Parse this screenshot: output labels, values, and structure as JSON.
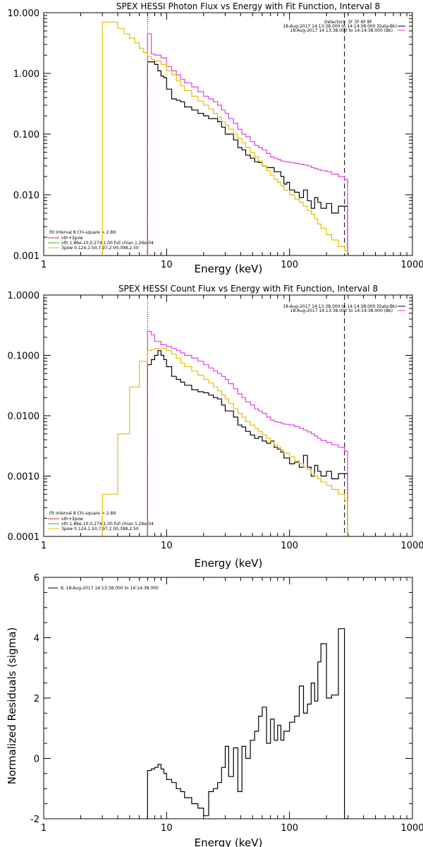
{
  "chart_data": [
    {
      "type": "line",
      "title": "SPEX HESSI Photon Flux vs Energy with Fit Function, Interval 8",
      "xlabel": "Energy (keV)",
      "ylabel": "",
      "xscale": "log",
      "yscale": "log",
      "xlim": [
        1,
        1000
      ],
      "ylim": [
        0.001,
        10
      ],
      "xticks": [
        "1",
        "10",
        "100",
        "1000"
      ],
      "yticks": [
        "0.001",
        "0.010",
        "0.100",
        "1.000",
        "10.000"
      ],
      "vlines": {
        "dotted": 7,
        "dashed": 280
      },
      "legend_top_right": [
        "Detectors: 1F 3F 6F 8F",
        "18-Aug-2017 14:13:38.000 to 14:14:38.000 (Data-Bk)",
        "18-Aug-2017 14:13:38.000 to 14:14:38.000 (Bk)"
      ],
      "legend_bottom_left": [
        "Fit Interval  8   Chi-square = 2.89",
        "vth+3pow",
        "vth 1.86e-10,0.274,1.00  full chian 1.26e-04",
        "3pow 0.124,1.50,7.97,2.00,398,2.50"
      ],
      "series": [
        {
          "name": "(Data-Bk)",
          "color": "#000000",
          "x": [
            7.0,
            7.5,
            8.0,
            8.5,
            9.0,
            9.5,
            10,
            11,
            12,
            13,
            14,
            16,
            18,
            20,
            22,
            24,
            26,
            28,
            30,
            32,
            35,
            38,
            41,
            44,
            48,
            52,
            56,
            60,
            65,
            70,
            75,
            80,
            85,
            90,
            95,
            100,
            110,
            120,
            130,
            140,
            150,
            160,
            170,
            180,
            200,
            220,
            250,
            280
          ],
          "y": [
            1.55,
            1.55,
            1.4,
            1.1,
            0.9,
            0.85,
            0.55,
            0.38,
            0.36,
            0.34,
            0.28,
            0.25,
            0.22,
            0.2,
            0.18,
            0.18,
            0.16,
            0.13,
            0.1,
            0.1,
            0.08,
            0.06,
            0.055,
            0.045,
            0.04,
            0.035,
            0.034,
            0.03,
            0.028,
            0.028,
            0.024,
            0.024,
            0.02,
            0.015,
            0.016,
            0.012,
            0.011,
            0.009,
            0.012,
            0.008,
            0.006,
            0.009,
            0.0075,
            0.006,
            0.0072,
            0.005,
            0.0065,
            0.0065
          ]
        },
        {
          "name": "(Bk)",
          "color": "#e040e0",
          "x": [
            7.0,
            7.5,
            8.0,
            9.0,
            10,
            11,
            12,
            13,
            14,
            16,
            18,
            20,
            22,
            24,
            26,
            28,
            30,
            32,
            35,
            38,
            41,
            44,
            48,
            52,
            56,
            60,
            65,
            70,
            75,
            80,
            85,
            90,
            100,
            110,
            120,
            130,
            140,
            150,
            160,
            170,
            180,
            200,
            220,
            250,
            280
          ],
          "y": [
            4.5,
            2.1,
            2.0,
            1.8,
            1.3,
            1.1,
            0.95,
            0.8,
            0.7,
            0.6,
            0.5,
            0.42,
            0.38,
            0.34,
            0.3,
            0.25,
            0.22,
            0.18,
            0.15,
            0.12,
            0.1,
            0.09,
            0.075,
            0.065,
            0.06,
            0.055,
            0.048,
            0.042,
            0.04,
            0.038,
            0.036,
            0.035,
            0.034,
            0.033,
            0.032,
            0.031,
            0.03,
            0.028,
            0.027,
            0.026,
            0.025,
            0.024,
            0.022,
            0.02,
            0.018
          ]
        },
        {
          "name": "vth+3pow",
          "color": "#e0c000",
          "x": [
            3.0,
            3.5,
            4.0,
            4.5,
            5.0,
            5.5,
            6.0,
            6.5,
            7.0,
            7.5,
            8.0,
            9.0,
            10,
            11,
            12,
            13,
            14,
            16,
            18,
            20,
            22,
            24,
            26,
            28,
            30,
            32,
            35,
            38,
            41,
            44,
            48,
            52,
            56,
            60,
            65,
            70,
            75,
            80,
            85,
            90,
            100,
            110,
            120,
            130,
            140,
            150,
            160,
            170,
            180,
            200,
            220,
            250,
            280
          ],
          "y": [
            7.0,
            7.0,
            5.5,
            4.5,
            3.8,
            3.2,
            2.6,
            2.2,
            1.9,
            1.7,
            1.6,
            1.4,
            1.1,
            0.95,
            0.75,
            0.62,
            0.52,
            0.42,
            0.35,
            0.3,
            0.26,
            0.22,
            0.19,
            0.16,
            0.14,
            0.12,
            0.1,
            0.085,
            0.072,
            0.06,
            0.05,
            0.042,
            0.036,
            0.03,
            0.025,
            0.021,
            0.018,
            0.016,
            0.014,
            0.012,
            0.01,
            0.0085,
            0.0075,
            0.0065,
            0.0055,
            0.0048,
            0.004,
            0.0033,
            0.0028,
            0.0022,
            0.0018,
            0.0014,
            0.0012
          ]
        }
      ]
    },
    {
      "type": "line",
      "title": "SPEX HESSI Count Flux vs Energy with Fit Function, Interval 8",
      "xlabel": "Energy (keV)",
      "ylabel": "",
      "xscale": "log",
      "yscale": "log",
      "xlim": [
        1,
        1000
      ],
      "ylim": [
        0.0001,
        1
      ],
      "xticks": [
        "1",
        "10",
        "100",
        "1000"
      ],
      "yticks": [
        "0.0001",
        "0.0010",
        "0.0100",
        "0.1000",
        "1.0000"
      ],
      "vlines": {
        "dotted": 7,
        "dashed": 280
      },
      "legend_top_right": [
        "18-Aug-2017 14:13:38.000 to 14:14:38.000 (Data-Bk)",
        "18-Aug-2017 14:13:38.000 to 14:14:38.000 (Bk)"
      ],
      "legend_bottom_left": [
        "Fit Interval  8   Chi-square = 2.89",
        "vth+3pow",
        "vth 1.86e-10,0.274,1.00  full chian 1.26e-04",
        "3pow 0.124,1.50,7.97,2.00,398,2.50"
      ],
      "series": [
        {
          "name": "(Data-Bk)",
          "color": "#000000",
          "x": [
            7.0,
            7.5,
            8.0,
            8.5,
            9.0,
            9.5,
            10,
            11,
            12,
            13,
            14,
            16,
            18,
            20,
            22,
            24,
            26,
            28,
            30,
            32,
            35,
            38,
            41,
            44,
            48,
            52,
            56,
            60,
            65,
            70,
            75,
            80,
            85,
            90,
            95,
            100,
            110,
            120,
            130,
            140,
            150,
            160,
            170,
            180,
            200,
            220,
            250,
            280
          ],
          "y": [
            0.07,
            0.085,
            0.1,
            0.12,
            0.1,
            0.085,
            0.065,
            0.045,
            0.04,
            0.036,
            0.032,
            0.027,
            0.025,
            0.024,
            0.022,
            0.02,
            0.019,
            0.015,
            0.012,
            0.012,
            0.0095,
            0.007,
            0.0065,
            0.0055,
            0.0048,
            0.0042,
            0.0045,
            0.0038,
            0.0035,
            0.0038,
            0.003,
            0.0028,
            0.0025,
            0.002,
            0.002,
            0.0016,
            0.0017,
            0.0014,
            0.0022,
            0.0014,
            0.001,
            0.0015,
            0.0012,
            0.001,
            0.0012,
            0.0009,
            0.0011,
            0.0011
          ]
        },
        {
          "name": "(Bk)",
          "color": "#e040e0",
          "x": [
            7.0,
            7.5,
            8.0,
            9.0,
            10,
            11,
            12,
            13,
            14,
            16,
            18,
            20,
            22,
            24,
            26,
            28,
            30,
            32,
            35,
            38,
            41,
            44,
            48,
            52,
            56,
            60,
            65,
            70,
            75,
            80,
            85,
            90,
            100,
            110,
            120,
            130,
            140,
            150,
            160,
            170,
            180,
            200,
            220,
            250,
            280
          ],
          "y": [
            0.25,
            0.22,
            0.17,
            0.15,
            0.14,
            0.13,
            0.12,
            0.11,
            0.1,
            0.09,
            0.08,
            0.07,
            0.062,
            0.055,
            0.05,
            0.045,
            0.04,
            0.034,
            0.028,
            0.023,
            0.02,
            0.017,
            0.015,
            0.013,
            0.012,
            0.011,
            0.0095,
            0.0085,
            0.008,
            0.0078,
            0.0075,
            0.0072,
            0.007,
            0.0066,
            0.0062,
            0.0058,
            0.0054,
            0.005,
            0.0046,
            0.0042,
            0.0039,
            0.0036,
            0.0033,
            0.003,
            0.0026
          ]
        },
        {
          "name": "vth+3pow",
          "color": "#e0c000",
          "x": [
            3.0,
            3.5,
            4.0,
            4.5,
            5.0,
            5.5,
            6.0,
            6.5,
            7.0,
            7.5,
            8.0,
            9.0,
            10,
            11,
            12,
            13,
            14,
            16,
            18,
            20,
            22,
            24,
            26,
            28,
            30,
            32,
            35,
            38,
            41,
            44,
            48,
            52,
            56,
            60,
            65,
            70,
            75,
            80,
            85,
            90,
            100,
            110,
            120,
            130,
            140,
            150,
            160,
            170,
            180,
            200,
            220,
            250,
            280
          ],
          "y": [
            0.0005,
            0.0005,
            0.005,
            0.005,
            0.03,
            0.03,
            0.08,
            0.08,
            0.12,
            0.125,
            0.13,
            0.13,
            0.12,
            0.105,
            0.09,
            0.075,
            0.065,
            0.055,
            0.047,
            0.04,
            0.035,
            0.03,
            0.026,
            0.022,
            0.019,
            0.016,
            0.013,
            0.011,
            0.0095,
            0.008,
            0.007,
            0.0062,
            0.0055,
            0.0048,
            0.0042,
            0.0037,
            0.0033,
            0.003,
            0.0027,
            0.0024,
            0.0021,
            0.0018,
            0.0016,
            0.0014,
            0.0013,
            0.0011,
            0.001,
            0.0009,
            0.0008,
            0.0007,
            0.0006,
            0.0005,
            0.0004
          ]
        }
      ]
    },
    {
      "type": "line",
      "title": "",
      "xlabel": "Energy (keV)",
      "ylabel": "Normalized Residuals (sigma)",
      "xscale": "log",
      "yscale": "linear",
      "xlim": [
        1,
        1000
      ],
      "ylim": [
        -2,
        6
      ],
      "xticks": [
        "1",
        "10",
        "100",
        "1000"
      ],
      "yticks": [
        "-2",
        "0",
        "2",
        "4",
        "6"
      ],
      "legend_top_left": [
        "8, 18-Aug-2017 14:13:38.000 to 14:14:38.000"
      ],
      "series": [
        {
          "name": "8, 18-Aug-2017 14:13:38.000 to 14:14:38.000",
          "color": "#000000",
          "x": [
            7.0,
            7.5,
            8.0,
            8.5,
            9.0,
            9.5,
            10,
            11,
            12,
            13,
            14,
            16,
            18,
            20,
            22,
            24,
            26,
            28,
            30,
            32,
            35,
            38,
            41,
            44,
            48,
            52,
            56,
            60,
            65,
            70,
            75,
            80,
            85,
            90,
            100,
            110,
            120,
            130,
            140,
            150,
            160,
            170,
            180,
            200,
            220,
            250,
            280
          ],
          "y": [
            -0.4,
            -0.35,
            -0.3,
            -0.2,
            -0.35,
            -0.5,
            -0.7,
            -0.8,
            -1.0,
            -1.1,
            -1.3,
            -1.5,
            -1.65,
            -1.9,
            -1.1,
            -1.0,
            -0.8,
            -0.3,
            0.4,
            -0.6,
            0.35,
            -1.1,
            0.4,
            0.0,
            0.6,
            0.9,
            1.4,
            1.7,
            0.5,
            1.3,
            0.6,
            1.1,
            0.6,
            0.9,
            1.2,
            1.4,
            2.4,
            1.5,
            1.8,
            2.5,
            1.9,
            3.2,
            3.8,
            2.0,
            2.1,
            4.3,
            -2.0
          ]
        }
      ]
    }
  ]
}
